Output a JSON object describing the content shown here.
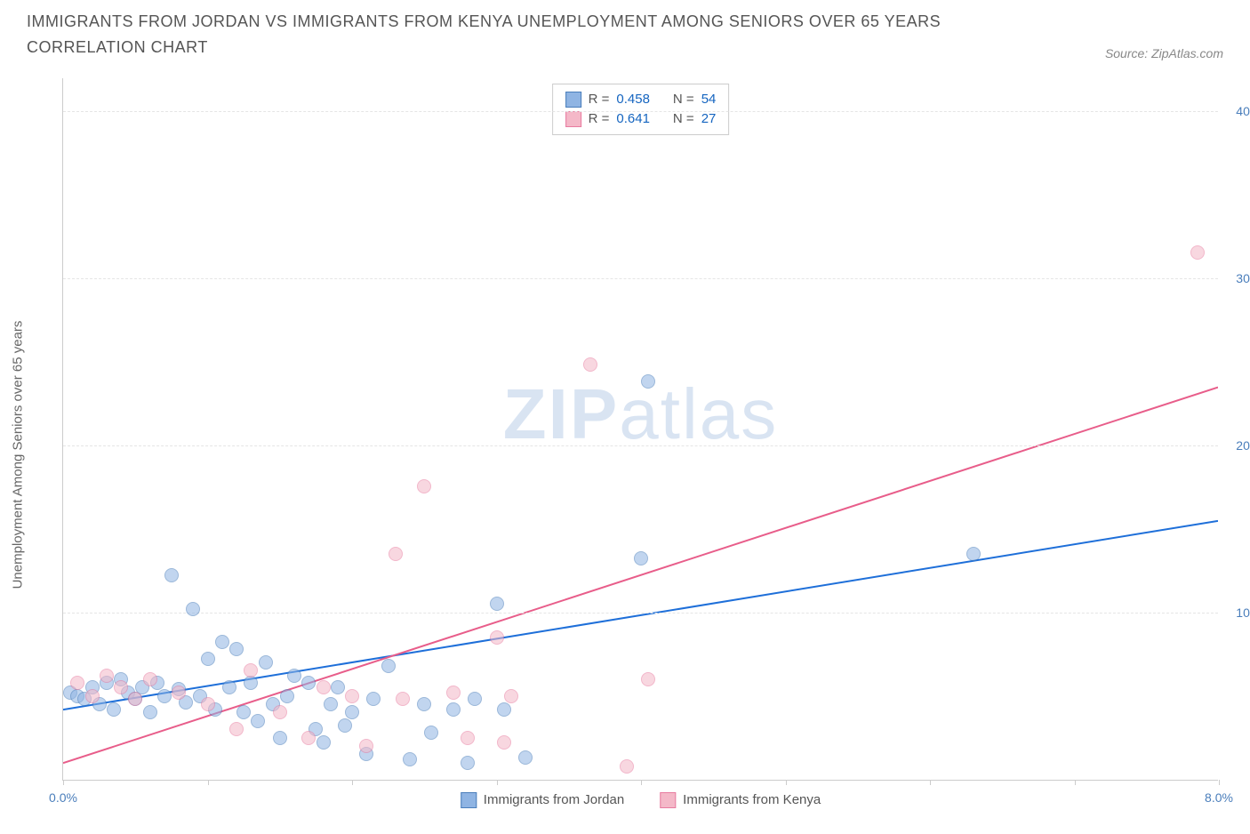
{
  "title": "IMMIGRANTS FROM JORDAN VS IMMIGRANTS FROM KENYA UNEMPLOYMENT AMONG SENIORS OVER 65 YEARS CORRELATION CHART",
  "source_label": "Source: ZipAtlas.com",
  "ylabel": "Unemployment Among Seniors over 65 years",
  "watermark_bold": "ZIP",
  "watermark_light": "atlas",
  "chart": {
    "type": "scatter",
    "background_color": "#ffffff",
    "grid_color": "#e5e5e5",
    "axis_color": "#cccccc",
    "tick_label_color": "#4a7ebb",
    "title_color": "#555555",
    "title_fontsize": 18,
    "label_fontsize": 15,
    "tick_fontsize": 14,
    "xlim": [
      0,
      8
    ],
    "ylim": [
      0,
      42
    ],
    "xticks": [
      0,
      1,
      2,
      3,
      4,
      5,
      6,
      7,
      8
    ],
    "xtick_labels": {
      "0": "0.0%",
      "8": "8.0%"
    },
    "yticks": [
      10,
      20,
      30,
      40
    ],
    "ytick_labels": {
      "10": "10.0%",
      "20": "20.0%",
      "30": "30.0%",
      "40": "40.0%"
    },
    "marker_size": 16,
    "marker_opacity": 0.55,
    "line_width": 2
  },
  "series": [
    {
      "name": "Immigrants from Jordan",
      "fill_color": "#8fb4e3",
      "border_color": "#4a7ebb",
      "line_color": "#1e6fd9",
      "R": "0.458",
      "N": "54",
      "trend": {
        "x1": 0,
        "y1": 4.2,
        "x2": 8,
        "y2": 15.5
      },
      "points": [
        [
          0.05,
          5.2
        ],
        [
          0.1,
          5.0
        ],
        [
          0.15,
          4.8
        ],
        [
          0.2,
          5.5
        ],
        [
          0.25,
          4.5
        ],
        [
          0.3,
          5.8
        ],
        [
          0.35,
          4.2
        ],
        [
          0.4,
          6.0
        ],
        [
          0.45,
          5.2
        ],
        [
          0.5,
          4.8
        ],
        [
          0.55,
          5.5
        ],
        [
          0.6,
          4.0
        ],
        [
          0.65,
          5.8
        ],
        [
          0.7,
          5.0
        ],
        [
          0.75,
          12.2
        ],
        [
          0.8,
          5.4
        ],
        [
          0.85,
          4.6
        ],
        [
          0.9,
          10.2
        ],
        [
          0.95,
          5.0
        ],
        [
          1.0,
          7.2
        ],
        [
          1.05,
          4.2
        ],
        [
          1.1,
          8.2
        ],
        [
          1.15,
          5.5
        ],
        [
          1.2,
          7.8
        ],
        [
          1.25,
          4.0
        ],
        [
          1.3,
          5.8
        ],
        [
          1.35,
          3.5
        ],
        [
          1.4,
          7.0
        ],
        [
          1.45,
          4.5
        ],
        [
          1.5,
          2.5
        ],
        [
          1.55,
          5.0
        ],
        [
          1.6,
          6.2
        ],
        [
          1.7,
          5.8
        ],
        [
          1.75,
          3.0
        ],
        [
          1.8,
          2.2
        ],
        [
          1.85,
          4.5
        ],
        [
          1.9,
          5.5
        ],
        [
          1.95,
          3.2
        ],
        [
          2.0,
          4.0
        ],
        [
          2.1,
          1.5
        ],
        [
          2.15,
          4.8
        ],
        [
          2.25,
          6.8
        ],
        [
          2.4,
          1.2
        ],
        [
          2.5,
          4.5
        ],
        [
          2.55,
          2.8
        ],
        [
          2.7,
          4.2
        ],
        [
          2.8,
          1.0
        ],
        [
          2.85,
          4.8
        ],
        [
          3.0,
          10.5
        ],
        [
          3.05,
          4.2
        ],
        [
          3.2,
          1.3
        ],
        [
          4.0,
          13.2
        ],
        [
          4.05,
          23.8
        ],
        [
          6.3,
          13.5
        ]
      ]
    },
    {
      "name": "Immigrants from Kenya",
      "fill_color": "#f4b8c8",
      "border_color": "#e87ca0",
      "line_color": "#e85d8a",
      "R": "0.641",
      "N": "27",
      "trend": {
        "x1": 0,
        "y1": 1.0,
        "x2": 8,
        "y2": 23.5
      },
      "points": [
        [
          0.1,
          5.8
        ],
        [
          0.2,
          5.0
        ],
        [
          0.3,
          6.2
        ],
        [
          0.4,
          5.5
        ],
        [
          0.5,
          4.8
        ],
        [
          0.6,
          6.0
        ],
        [
          0.8,
          5.2
        ],
        [
          1.0,
          4.5
        ],
        [
          1.2,
          3.0
        ],
        [
          1.3,
          6.5
        ],
        [
          1.5,
          4.0
        ],
        [
          1.7,
          2.5
        ],
        [
          1.8,
          5.5
        ],
        [
          2.0,
          5.0
        ],
        [
          2.1,
          2.0
        ],
        [
          2.3,
          13.5
        ],
        [
          2.35,
          4.8
        ],
        [
          2.5,
          17.5
        ],
        [
          2.7,
          5.2
        ],
        [
          2.8,
          2.5
        ],
        [
          3.0,
          8.5
        ],
        [
          3.05,
          2.2
        ],
        [
          3.1,
          5.0
        ],
        [
          3.65,
          24.8
        ],
        [
          3.9,
          0.8
        ],
        [
          4.05,
          6.0
        ],
        [
          7.85,
          31.5
        ]
      ]
    }
  ],
  "stats_labels": {
    "R_prefix": "R =",
    "N_prefix": "N ="
  }
}
